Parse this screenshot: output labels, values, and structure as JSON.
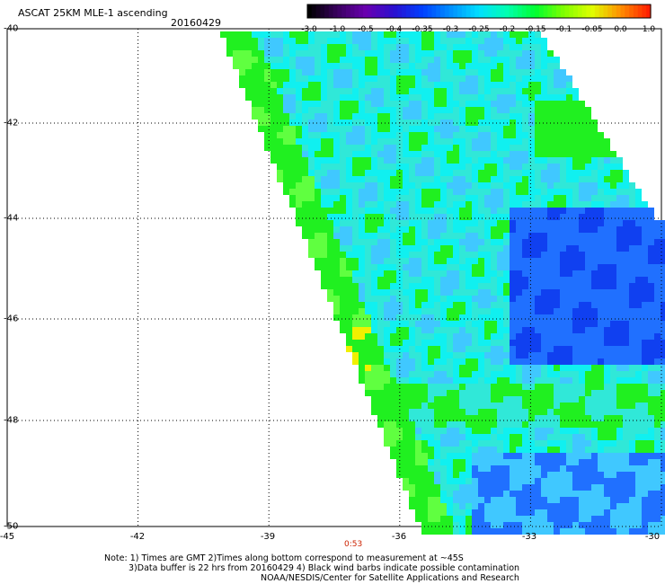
{
  "header": {
    "title": "ASCAT 25KM MLE-1 ascending",
    "date": "20160429"
  },
  "colorbar": {
    "labels": [
      "-3.0",
      "-1.0",
      "-0.5",
      "-0.4",
      "-0.35",
      "-0.3",
      "-0.25",
      "-0.2",
      "-0.15",
      "-0.1",
      "-0.05",
      "0.0",
      "1.0"
    ],
    "colors": [
      "#000000",
      "#3a0060",
      "#6a00b0",
      "#2a10d0",
      "#0040ff",
      "#0090ff",
      "#00e0ff",
      "#00ffb0",
      "#00ff30",
      "#80ff00",
      "#e0ff00",
      "#ff9000",
      "#ff2000"
    ]
  },
  "axes": {
    "x_ticks": [
      "-45",
      "-42",
      "-39",
      "-36",
      "-33",
      "-30"
    ],
    "y_ticks": [
      "-40",
      "-42",
      "-44",
      "-46",
      "-48",
      "-50"
    ],
    "x_values": [
      -45,
      -42,
      -39,
      -36,
      -33,
      -30
    ],
    "y_values": [
      -40,
      -42,
      -44,
      -46,
      -48,
      -50
    ],
    "lon_range": [
      -45,
      -30
    ],
    "lat_range": [
      -50,
      -40
    ],
    "grid": "dotted"
  },
  "swath": {
    "time_label": "0:53"
  },
  "notes": {
    "line1": "Note: 1) Times are GMT 2)Times along bottom correspond to measurement at ~45S",
    "line2": "3)Data buffer is 22 hrs from 20160429 4) Black wind barbs indicate possible contamination",
    "line3": "NOAA/NESDIS/Center for Satellite Applications and Research"
  }
}
